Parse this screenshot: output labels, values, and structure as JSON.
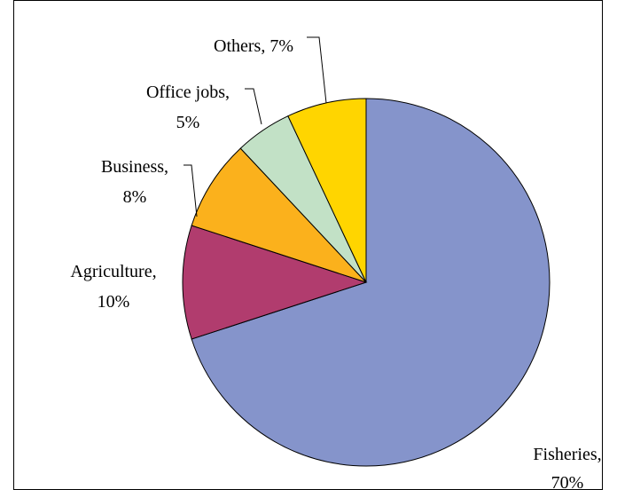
{
  "chart_data": {
    "type": "pie",
    "title": "",
    "start_angle_deg": 0,
    "direction": "clockwise",
    "slices": [
      {
        "label": "Fisheries",
        "value": 70,
        "value_label": "70%",
        "color": "#8594CB"
      },
      {
        "label": "Agriculture",
        "value": 10,
        "value_label": "10%",
        "color": "#B13C6E"
      },
      {
        "label": "Business",
        "value": 8,
        "value_label": "8%",
        "color": "#FBB11C"
      },
      {
        "label": "Office jobs",
        "value": 5,
        "value_label": "5%",
        "color": "#C2E1C6"
      },
      {
        "label": "Others",
        "value": 7,
        "value_label": "7%",
        "color": "#FFD500"
      }
    ],
    "labels": [
      {
        "lines": [
          "Fisheries,",
          "70%"
        ]
      },
      {
        "lines": [
          "Agriculture,",
          "10%"
        ]
      },
      {
        "lines": [
          "Business,",
          "8%"
        ]
      },
      {
        "lines": [
          "Office jobs,",
          "5%"
        ]
      },
      {
        "lines": [
          "Others, 7%"
        ]
      }
    ]
  }
}
